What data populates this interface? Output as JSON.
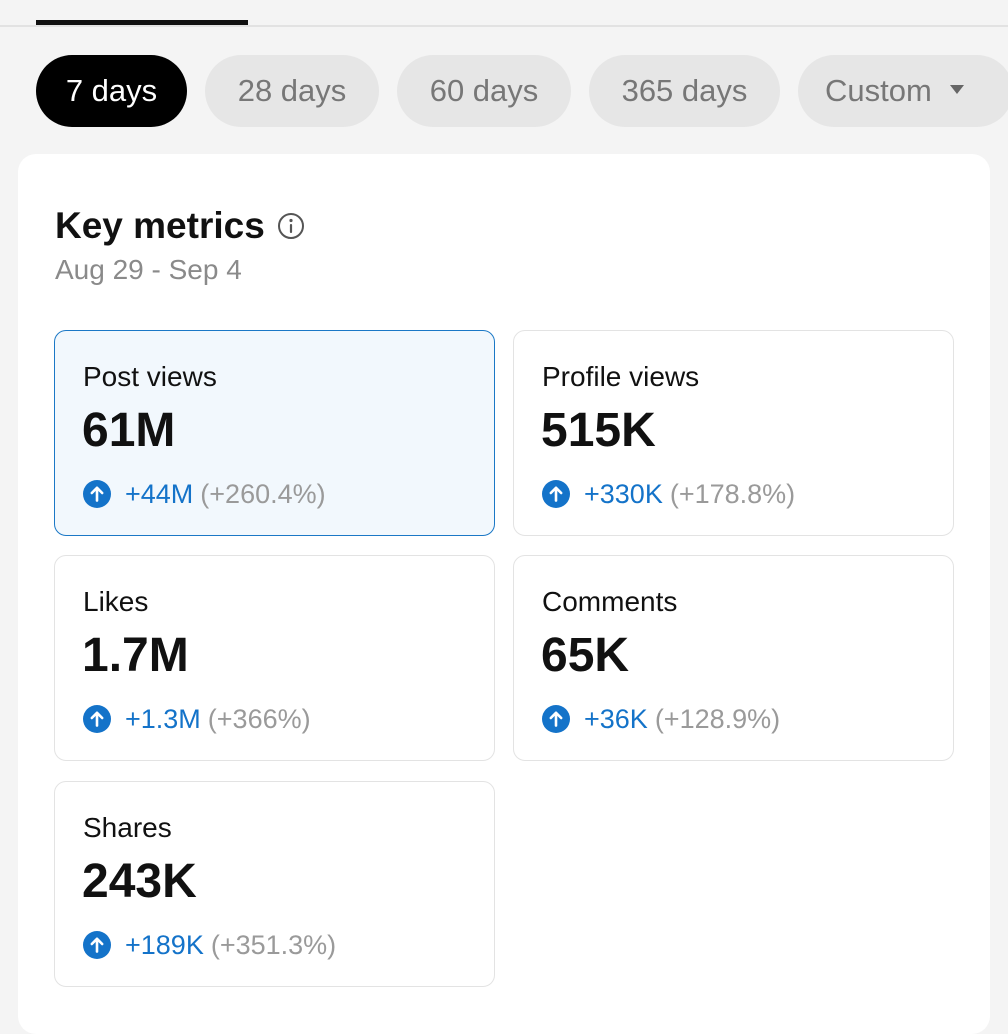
{
  "tabs": {
    "active_indicator": "selected-tab"
  },
  "filters": {
    "chips": [
      {
        "label": "7 days",
        "active": true
      },
      {
        "label": "28 days",
        "active": false
      },
      {
        "label": "60 days",
        "active": false
      },
      {
        "label": "365 days",
        "active": false
      },
      {
        "label": "Custom",
        "active": false
      }
    ]
  },
  "key_metrics": {
    "title": "Key metrics",
    "date_range": "Aug 29 - Sep 4",
    "cards": [
      {
        "label": "Post views",
        "value": "61M",
        "delta": "+44M",
        "pct": "(+260.4%)",
        "selected": true
      },
      {
        "label": "Profile views",
        "value": "515K",
        "delta": "+330K",
        "pct": "(+178.8%)",
        "selected": false
      },
      {
        "label": "Likes",
        "value": "1.7M",
        "delta": "+1.3M",
        "pct": "(+366%)",
        "selected": false
      },
      {
        "label": "Comments",
        "value": "65K",
        "delta": "+36K",
        "pct": "(+128.9%)",
        "selected": false
      },
      {
        "label": "Shares",
        "value": "243K",
        "delta": "+189K",
        "pct": "(+351.3%)",
        "selected": false
      }
    ]
  },
  "colors": {
    "accent": "#1473c9",
    "active_chip": "#000000",
    "chip": "#e6e6e6"
  }
}
